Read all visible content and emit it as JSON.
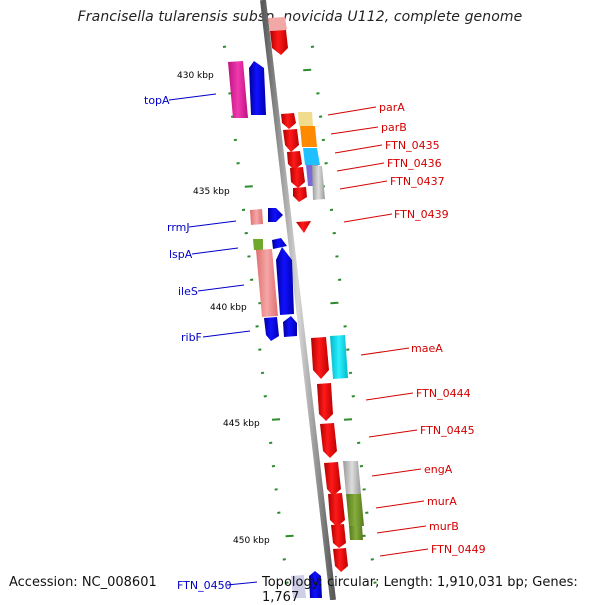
{
  "title": "Francisella tularensis subsp. novicida U112, complete genome",
  "accession": "Accession: NC_008601",
  "topology": "Topology: circular; Length: 1,910,031 bp; Genes: 1,767",
  "scale_labels": [
    "430 kbp",
    "435 kbp",
    "440 kbp",
    "445 kbp",
    "450 kbp"
  ],
  "right_gene_labels": [
    "parA",
    "parB",
    "FTN_0435",
    "FTN_0436",
    "FTN_0437",
    "FTN_0439",
    "maeA",
    "FTN_0444",
    "FTN_0445",
    "engA",
    "murA",
    "murB",
    "FTN_0449"
  ],
  "left_gene_labels": [
    "topA",
    "rrmJ",
    "lspA",
    "ileS",
    "ribF",
    "FTN_0450"
  ],
  "colors": {
    "forward_strand": "#e80000",
    "reverse_strand": "#0000e6",
    "right_label": "#d40000",
    "left_label": "#0000c8",
    "backbone": "#8a8a8a",
    "tick": "#2e8b2e"
  }
}
